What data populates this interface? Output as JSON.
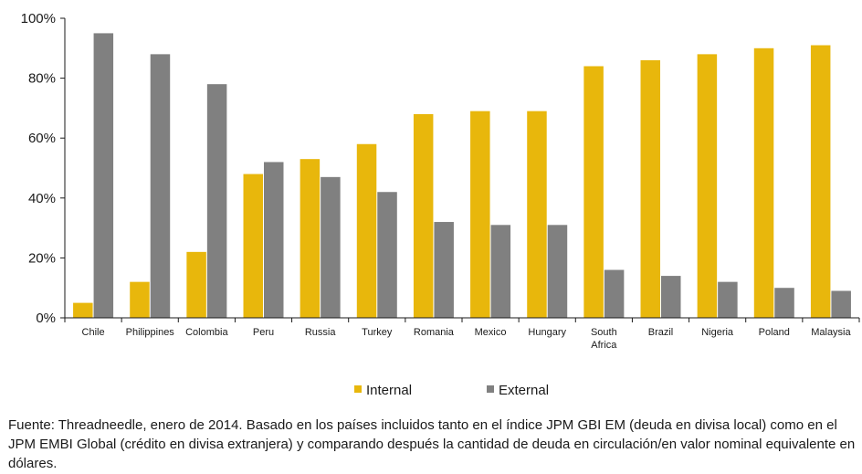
{
  "chart_data": {
    "type": "bar",
    "categories": [
      "Chile",
      "Philippines",
      "Colombia",
      "Peru",
      "Russia",
      "Turkey",
      "Romania",
      "Mexico",
      "Hungary",
      "South Africa",
      "Brazil",
      "Nigeria",
      "Poland",
      "Malaysia"
    ],
    "series": [
      {
        "name": "Internal",
        "color": "#e8b70c",
        "values": [
          5,
          12,
          22,
          48,
          53,
          58,
          68,
          69,
          69,
          84,
          86,
          88,
          90,
          91
        ]
      },
      {
        "name": "External",
        "color": "#808080",
        "values": [
          95,
          88,
          78,
          52,
          47,
          42,
          32,
          31,
          31,
          16,
          14,
          12,
          10,
          9
        ]
      }
    ],
    "yticks": [
      "0%",
      "20%",
      "40%",
      "60%",
      "80%",
      "100%"
    ],
    "ylim": [
      0,
      100
    ],
    "legend": "bottom-center",
    "grid": false
  },
  "caption": "Fuente: Threadneedle, enero de 2014. Basado en los países incluidos tanto en el índice JPM GBI EM (deuda en divisa local) como en el JPM EMBI Global (crédito en divisa extranjera) y comparando después la cantidad de deuda en circulación/en valor nominal equivalente en dólares."
}
